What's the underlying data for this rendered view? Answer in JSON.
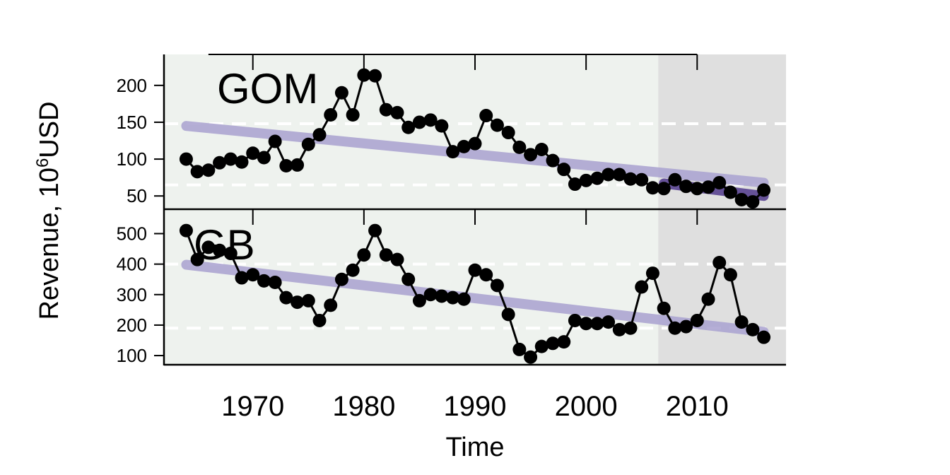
{
  "chart_data": {
    "type": "line",
    "xlabel": "Time",
    "ylabel": "Revenue, 10",
    "ylabel_sup": "6",
    "ylabel_unit": "USD",
    "x_ticks": [
      1970,
      1980,
      1990,
      2000,
      2010
    ],
    "xlim": [
      1962,
      2018
    ],
    "shaded_region": [
      2006.5,
      2018
    ],
    "panels": [
      {
        "label": "GOM",
        "ylim": [
          32,
          242
        ],
        "yticks": [
          50,
          100,
          150,
          200
        ],
        "dashed_lines": [
          148,
          65
        ],
        "series": {
          "x": [
            1964,
            1965,
            1966,
            1967,
            1968,
            1969,
            1970,
            1971,
            1972,
            1973,
            1974,
            1975,
            1976,
            1977,
            1978,
            1979,
            1980,
            1981,
            1982,
            1983,
            1984,
            1985,
            1986,
            1987,
            1988,
            1989,
            1990,
            1991,
            1992,
            1993,
            1994,
            1995,
            1996,
            1997,
            1998,
            1999,
            2000,
            2001,
            2002,
            2003,
            2004,
            2005,
            2006,
            2007,
            2008,
            2009,
            2010,
            2011,
            2012,
            2013,
            2014,
            2015,
            2016
          ],
          "y": [
            100,
            83,
            85,
            95,
            100,
            96,
            108,
            102,
            124,
            91,
            92,
            120,
            133,
            160,
            190,
            160,
            214,
            213,
            167,
            163,
            143,
            150,
            153,
            145,
            110,
            117,
            121,
            159,
            146,
            136,
            116,
            106,
            113,
            98,
            86,
            66,
            71,
            74,
            79,
            79,
            73,
            72,
            61,
            60,
            72,
            63,
            60,
            62,
            68,
            55,
            45,
            42,
            58
          ]
        },
        "trend": {
          "x": [
            1964,
            2016
          ],
          "y": [
            145,
            68
          ]
        },
        "recent_trend": {
          "x": [
            2007,
            2016
          ],
          "y": [
            67,
            50
          ]
        }
      },
      {
        "label": "GB",
        "ylim": [
          70,
          580
        ],
        "yticks": [
          100,
          200,
          300,
          400,
          500
        ],
        "dashed_lines": [
          400,
          190
        ],
        "series": {
          "x": [
            1964,
            1965,
            1966,
            1967,
            1968,
            1969,
            1970,
            1971,
            1972,
            1973,
            1974,
            1975,
            1976,
            1977,
            1978,
            1979,
            1980,
            1981,
            1982,
            1983,
            1984,
            1985,
            1986,
            1987,
            1988,
            1989,
            1990,
            1991,
            1992,
            1993,
            1994,
            1995,
            1996,
            1997,
            1998,
            1999,
            2000,
            2001,
            2002,
            2003,
            2004,
            2005,
            2006,
            2007,
            2008,
            2009,
            2010,
            2011,
            2012,
            2013,
            2014,
            2015,
            2016
          ],
          "y": [
            510,
            415,
            455,
            445,
            435,
            355,
            365,
            345,
            340,
            290,
            275,
            280,
            215,
            265,
            350,
            380,
            430,
            510,
            430,
            415,
            350,
            280,
            300,
            295,
            290,
            285,
            380,
            365,
            330,
            235,
            120,
            95,
            130,
            140,
            145,
            215,
            205,
            205,
            210,
            185,
            190,
            325,
            370,
            255,
            190,
            195,
            215,
            285,
            405,
            365,
            210,
            185,
            160
          ]
        },
        "trend": {
          "x": [
            1964,
            2016
          ],
          "y": [
            398,
            178
          ]
        }
      }
    ]
  },
  "colors": {
    "panel_bg": "#eef2ee",
    "shade": "#dfdfdf",
    "trend": "#ada6d2",
    "recent_trend": "#523a8c",
    "series": "#000000",
    "dashed": "#ffffff"
  }
}
